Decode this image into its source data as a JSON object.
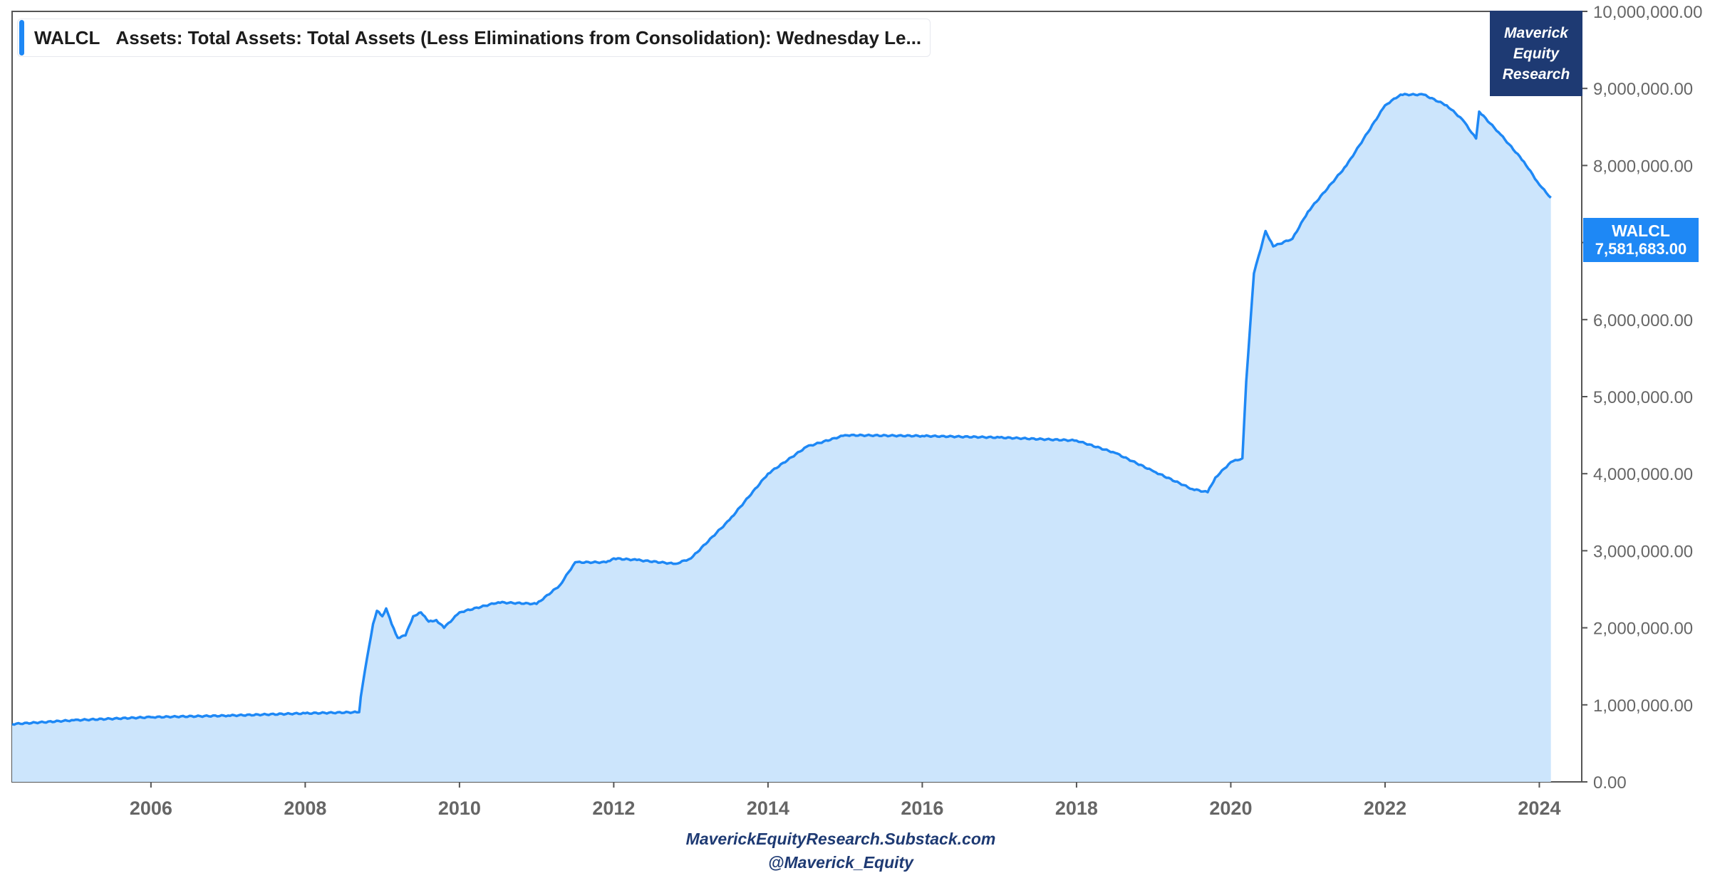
{
  "legend": {
    "symbol": "WALCL",
    "description": "Assets: Total Assets: Total Assets (Less Eliminations from Consolidation): Wednesday Le..."
  },
  "brand": {
    "line1": "Maverick",
    "line2": "Equity",
    "line3": "Research"
  },
  "last_value_tag": {
    "symbol": "WALCL",
    "value": "7,581,683.00"
  },
  "footer": {
    "site": "MaverickEquityResearch.Substack.com",
    "handle": "@Maverick_Equity"
  },
  "colors": {
    "line": "#1e88f5",
    "area_fill": "#cce5fc",
    "brand_background": "#1e3a73",
    "tag_background": "#1e88f5",
    "axis_text": "#666666"
  },
  "chart_data": {
    "type": "area",
    "title": "",
    "xlabel": "",
    "ylabel": "",
    "grid": false,
    "legend_position": "top-left",
    "y_axis_side": "right",
    "xlim": [
      2004.2,
      2024.55
    ],
    "ylim": [
      0,
      10000000
    ],
    "x_ticks": [
      {
        "v": 2006,
        "label": "2006"
      },
      {
        "v": 2008,
        "label": "2008"
      },
      {
        "v": 2010,
        "label": "2010"
      },
      {
        "v": 2012,
        "label": "2012"
      },
      {
        "v": 2014,
        "label": "2014"
      },
      {
        "v": 2016,
        "label": "2016"
      },
      {
        "v": 2018,
        "label": "2018"
      },
      {
        "v": 2020,
        "label": "2020"
      },
      {
        "v": 2022,
        "label": "2022"
      },
      {
        "v": 2024,
        "label": "2024"
      }
    ],
    "y_ticks": [
      {
        "v": 0,
        "label": "0.00"
      },
      {
        "v": 1000000,
        "label": "1,000,000.00"
      },
      {
        "v": 2000000,
        "label": "2,000,000.00"
      },
      {
        "v": 3000000,
        "label": "3,000,000.00"
      },
      {
        "v": 4000000,
        "label": "4,000,000.00"
      },
      {
        "v": 5000000,
        "label": "5,000,000.00"
      },
      {
        "v": 6000000,
        "label": "6,000,000.00"
      },
      {
        "v": 7000000,
        "label": "7,000,000.00"
      },
      {
        "v": 8000000,
        "label": "8,000,000.00"
      },
      {
        "v": 9000000,
        "label": "9,000,000.00"
      },
      {
        "v": 10000000,
        "label": "10,000,000.00"
      }
    ],
    "series": [
      {
        "name": "WALCL",
        "points": [
          [
            2004.2,
            750000
          ],
          [
            2005.0,
            800000
          ],
          [
            2006.0,
            840000
          ],
          [
            2007.0,
            860000
          ],
          [
            2008.0,
            890000
          ],
          [
            2008.7,
            905000
          ],
          [
            2008.72,
            1100000
          ],
          [
            2008.8,
            1600000
          ],
          [
            2008.88,
            2050000
          ],
          [
            2008.93,
            2220000
          ],
          [
            2009.0,
            2150000
          ],
          [
            2009.05,
            2250000
          ],
          [
            2009.12,
            2050000
          ],
          [
            2009.2,
            1870000
          ],
          [
            2009.3,
            1900000
          ],
          [
            2009.4,
            2150000
          ],
          [
            2009.5,
            2200000
          ],
          [
            2009.6,
            2080000
          ],
          [
            2009.7,
            2100000
          ],
          [
            2009.8,
            2000000
          ],
          [
            2010.0,
            2200000
          ],
          [
            2010.5,
            2330000
          ],
          [
            2011.0,
            2310000
          ],
          [
            2011.3,
            2550000
          ],
          [
            2011.5,
            2850000
          ],
          [
            2011.9,
            2850000
          ],
          [
            2012.0,
            2900000
          ],
          [
            2012.3,
            2880000
          ],
          [
            2012.8,
            2830000
          ],
          [
            2013.0,
            2900000
          ],
          [
            2013.5,
            3400000
          ],
          [
            2014.0,
            4000000
          ],
          [
            2014.5,
            4350000
          ],
          [
            2015.0,
            4500000
          ],
          [
            2016.0,
            4490000
          ],
          [
            2017.0,
            4470000
          ],
          [
            2018.0,
            4430000
          ],
          [
            2018.5,
            4270000
          ],
          [
            2019.0,
            4030000
          ],
          [
            2019.5,
            3800000
          ],
          [
            2019.7,
            3760000
          ],
          [
            2019.8,
            3950000
          ],
          [
            2020.0,
            4150000
          ],
          [
            2020.15,
            4200000
          ],
          [
            2020.2,
            5200000
          ],
          [
            2020.3,
            6600000
          ],
          [
            2020.45,
            7150000
          ],
          [
            2020.55,
            6950000
          ],
          [
            2020.8,
            7050000
          ],
          [
            2021.0,
            7400000
          ],
          [
            2021.5,
            8000000
          ],
          [
            2022.0,
            8780000
          ],
          [
            2022.2,
            8920000
          ],
          [
            2022.5,
            8920000
          ],
          [
            2022.8,
            8780000
          ],
          [
            2023.0,
            8600000
          ],
          [
            2023.18,
            8350000
          ],
          [
            2023.22,
            8700000
          ],
          [
            2023.5,
            8400000
          ],
          [
            2023.8,
            8050000
          ],
          [
            2024.0,
            7750000
          ],
          [
            2024.15,
            7581683
          ]
        ]
      }
    ]
  }
}
